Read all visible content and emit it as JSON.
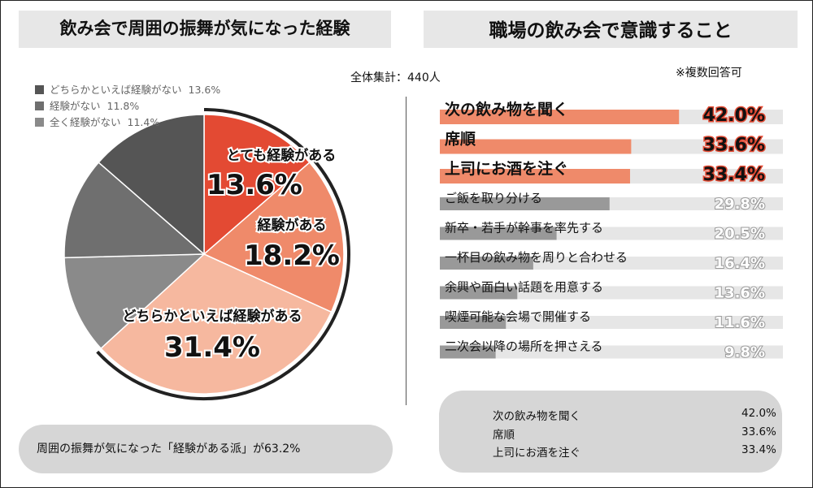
{
  "left_title": "飲み会で周囲の振舞が気になった経験",
  "right_title": "職場の飲み会で意識すること",
  "total_label": "全体集計：440人",
  "multiple_answer_note": "※複数回答可",
  "left_summary": "周囲の振舞が気になった「経験がある派」が63.2%",
  "right_summary": [
    {
      "label": "次の飲み物を聞く",
      "value": "42.0%"
    },
    {
      "label": "席順",
      "value": "33.6%"
    },
    {
      "label": "上司にお酒を注ぐ",
      "value": "33.4%"
    }
  ],
  "colors": {
    "pie_very": "#e34a33",
    "pie_yes": "#ef8a6a",
    "pie_somewhat": "#f6b89f",
    "pie_somewhat_no": "#555555",
    "pie_no": "#6f6f6f",
    "pie_none": "#8a8a8a",
    "bar_top": "#ef8a6a",
    "bar_rest": "#999999",
    "bar_track": "#e6e6e6"
  },
  "chart_data": [
    {
      "type": "pie",
      "title": "飲み会で周囲の振舞が気になった経験",
      "slices": [
        {
          "label": "とても経験がある",
          "value": 13.6,
          "value_label": "13.6%"
        },
        {
          "label": "経験がある",
          "value": 18.2,
          "value_label": "18.2%"
        },
        {
          "label": "どちらかといえば経験がある",
          "value": 31.4,
          "value_label": "31.4%"
        },
        {
          "label": "全く経験がない",
          "value": 11.4,
          "value_label": "11.4%"
        },
        {
          "label": "経験がない",
          "value": 11.8,
          "value_label": "11.8%"
        },
        {
          "label": "どちらかといえば経験がない",
          "value": 13.6,
          "value_label": "13.6%"
        }
      ],
      "legend": [
        {
          "label": "どちらかといえば経験がない",
          "value_label": "13.6%"
        },
        {
          "label": "経験がない",
          "value_label": "11.8%"
        },
        {
          "label": "全く経験がない",
          "value_label": "11.4%"
        }
      ],
      "legend_position": "top-left"
    },
    {
      "type": "bar",
      "orientation": "horizontal",
      "title": "職場の飲み会で意識すること",
      "categories": [
        "次の飲み物を聞く",
        "席順",
        "上司にお酒を注ぐ",
        "ご飯を取り分ける",
        "新卒・若手が幹事を率先する",
        "一杯目の飲み物を周りと合わせる",
        "余興や面白い話題を用意する",
        "喫煙可能な会場で開催する",
        "二次会以降の場所を押さえる"
      ],
      "values": [
        42.0,
        33.6,
        33.4,
        29.8,
        20.5,
        16.4,
        13.6,
        11.6,
        9.8
      ],
      "value_labels": [
        "42.0%",
        "33.6%",
        "33.4%",
        "29.8%",
        "20.5%",
        "16.4%",
        "13.6%",
        "11.6%",
        "9.8%"
      ],
      "highlight_count": 3,
      "xlim": [
        0,
        50
      ]
    }
  ]
}
